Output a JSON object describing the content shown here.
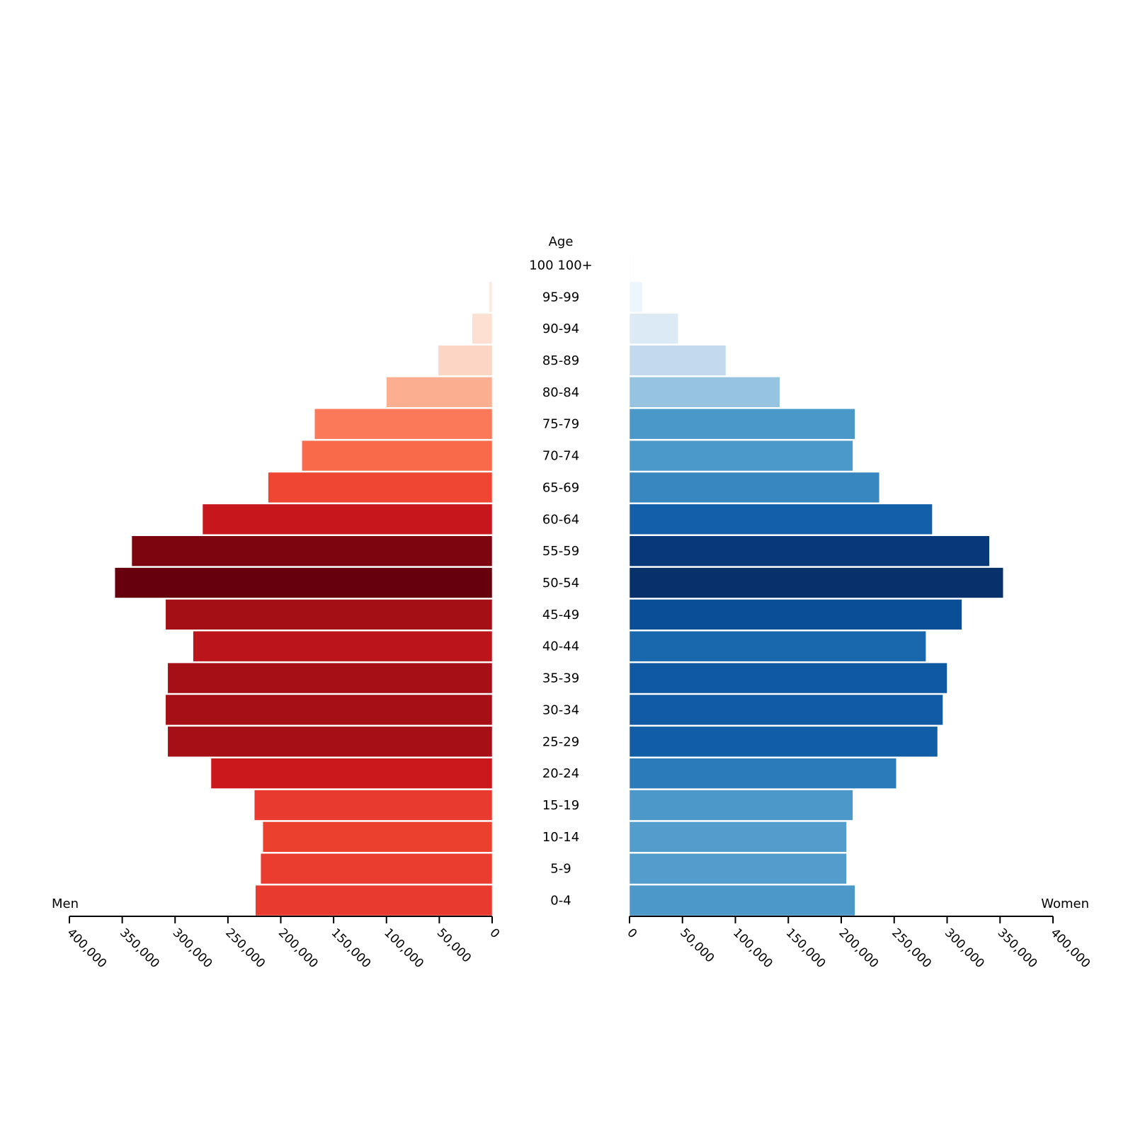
{
  "chart_data": {
    "type": "bar",
    "subtype": "population-pyramid",
    "title": "",
    "center_axis_title": "Age",
    "categories": [
      "100 100+",
      "95-99",
      "90-94",
      "85-89",
      "80-84",
      "75-79",
      "70-74",
      "65-69",
      "60-64",
      "55-59",
      "50-54",
      "45-49",
      "40-44",
      "35-39",
      "30-34",
      "25-29",
      "20-24",
      "15-19",
      "10-14",
      "5-9",
      "0-4"
    ],
    "series": [
      {
        "name": "Men",
        "side": "left",
        "values": [
          500,
          3000,
          19000,
          51000,
          100000,
          168000,
          180000,
          212000,
          274000,
          341000,
          357000,
          309000,
          283000,
          307000,
          309000,
          307000,
          266000,
          225000,
          217000,
          219000,
          224000
        ],
        "colors": [
          "#fff5f0",
          "#fee9e1",
          "#fee0d2",
          "#fdd5c4",
          "#fcae91",
          "#fb7858",
          "#f96a4b",
          "#ef4533",
          "#c7171c",
          "#7c0510",
          "#67000d",
          "#a40f15",
          "#bb141a",
          "#a60f16",
          "#a50f15",
          "#a60f16",
          "#ca181d",
          "#e83a2e",
          "#ec402f",
          "#ea3d2f",
          "#e83a2e"
        ]
      },
      {
        "name": "Women",
        "side": "right",
        "values": [
          1000,
          12000,
          46000,
          91000,
          142000,
          213000,
          211000,
          236000,
          286000,
          340000,
          353000,
          314000,
          280000,
          300000,
          296000,
          291000,
          252000,
          211000,
          205000,
          205000,
          213000
        ],
        "colors": [
          "#f7fbff",
          "#edf5fd",
          "#dceaf6",
          "#c3daee",
          "#95c3e0",
          "#4a98c9",
          "#4b98ca",
          "#3887c1",
          "#1460a8",
          "#08377a",
          "#08306b",
          "#0a4e98",
          "#1967ad",
          "#0e59a2",
          "#105ba4",
          "#125ea6",
          "#2b7bba",
          "#4b98c9",
          "#529dcc",
          "#529dcc",
          "#4b98c9"
        ]
      }
    ],
    "xaxis_left": {
      "label": "Men",
      "range": [
        400000,
        0
      ],
      "ticks": [
        "400,000",
        "350,000",
        "300,000",
        "250,000",
        "200,000",
        "150,000",
        "100,000",
        "50,000",
        "0"
      ]
    },
    "xaxis_right": {
      "label": "Women",
      "range": [
        0,
        400000
      ],
      "ticks": [
        "0",
        "50,000",
        "100,000",
        "150,000",
        "200,000",
        "250,000",
        "300,000",
        "350,000",
        "400,000"
      ]
    },
    "grid": false,
    "legend": "none"
  },
  "labels": {
    "age_title": "Age",
    "men": "Men",
    "women": "Women"
  }
}
